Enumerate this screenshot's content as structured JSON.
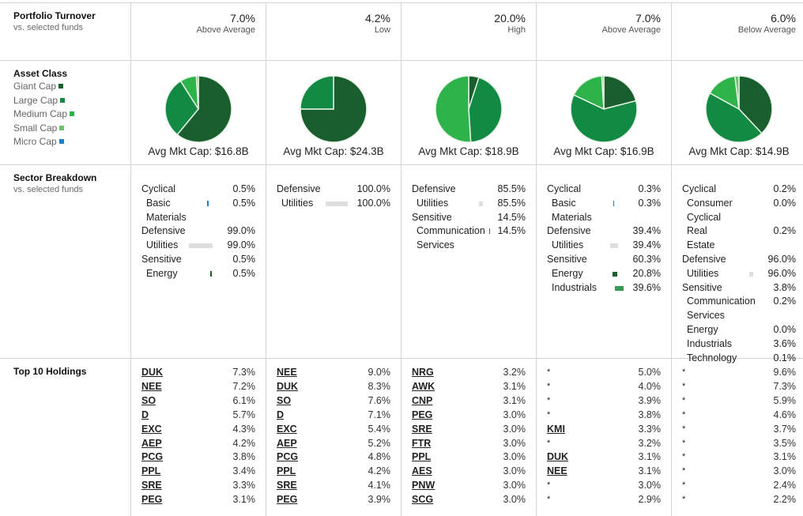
{
  "rows": {
    "turnover": {
      "title": "Portfolio Turnover",
      "subtitle": "vs. selected funds"
    },
    "asset_class": {
      "title": "Asset Class",
      "legend": [
        {
          "label": "Giant Cap",
          "color": "#1a5e2e"
        },
        {
          "label": "Large Cap",
          "color": "#128a43"
        },
        {
          "label": "Medium Cap",
          "color": "#2db34a"
        },
        {
          "label": "Small Cap",
          "color": "#6cc46a"
        },
        {
          "label": "Micro Cap",
          "color": "#1f7fc4"
        }
      ]
    },
    "sector": {
      "title": "Sector Breakdown",
      "subtitle": "vs. selected funds"
    },
    "holdings": {
      "title": "Top 10 Holdings"
    }
  },
  "funds": [
    {
      "turnover": {
        "value": "7.0%",
        "label": "Above Average"
      },
      "asset": {
        "mkt_cap": "Avg Mkt Cap: $16.8B",
        "slices": [
          61,
          30,
          8,
          1,
          0
        ]
      },
      "sectors": [
        {
          "name": "Cyclical",
          "level": 0,
          "value": "0.5%"
        },
        {
          "name": "Basic",
          "level": 1,
          "value": "0.5%",
          "bar": 2,
          "bar_color": "#1f7fc4"
        },
        {
          "name": "Materials",
          "level": 1,
          "value": ""
        },
        {
          "name": "Defensive",
          "level": 0,
          "value": "99.0%"
        },
        {
          "name": "Utilities",
          "level": 1,
          "value": "99.0%",
          "bar": 30,
          "bar_color": "#dedede"
        },
        {
          "name": "Sensitive",
          "level": 0,
          "value": "0.5%"
        },
        {
          "name": "Energy",
          "level": 1,
          "value": "0.5%",
          "bar": 2,
          "bar_color": "#1a5e2e"
        }
      ],
      "holdings": [
        {
          "ticker": "DUK",
          "value": "7.3%"
        },
        {
          "ticker": "NEE",
          "value": "7.2%"
        },
        {
          "ticker": "SO",
          "value": "6.1%"
        },
        {
          "ticker": "D",
          "value": "5.7%"
        },
        {
          "ticker": "EXC",
          "value": "4.3%"
        },
        {
          "ticker": "AEP",
          "value": "4.2%"
        },
        {
          "ticker": "PCG",
          "value": "3.8%"
        },
        {
          "ticker": "PPL",
          "value": "3.4%"
        },
        {
          "ticker": "SRE",
          "value": "3.3%"
        },
        {
          "ticker": "PEG",
          "value": "3.1%"
        }
      ]
    },
    {
      "turnover": {
        "value": "4.2%",
        "label": "Low"
      },
      "asset": {
        "mkt_cap": "Avg Mkt Cap: $24.3B",
        "slices": [
          75,
          25,
          0,
          0,
          0
        ]
      },
      "sectors": [
        {
          "name": "Defensive",
          "level": 0,
          "value": "100.0%"
        },
        {
          "name": "Utilities",
          "level": 1,
          "value": "100.0%",
          "bar": 28,
          "bar_color": "#dedede"
        }
      ],
      "holdings": [
        {
          "ticker": "NEE",
          "value": "9.0%"
        },
        {
          "ticker": "DUK",
          "value": "8.3%"
        },
        {
          "ticker": "SO",
          "value": "7.6%"
        },
        {
          "ticker": "D",
          "value": "7.1%"
        },
        {
          "ticker": "EXC",
          "value": "5.4%"
        },
        {
          "ticker": "AEP",
          "value": "5.2%"
        },
        {
          "ticker": "PCG",
          "value": "4.8%"
        },
        {
          "ticker": "PPL",
          "value": "4.2%"
        },
        {
          "ticker": "SRE",
          "value": "4.1%"
        },
        {
          "ticker": "PEG",
          "value": "3.9%"
        }
      ]
    },
    {
      "turnover": {
        "value": "20.0%",
        "label": "High"
      },
      "asset": {
        "mkt_cap": "Avg Mkt Cap: $18.9B",
        "slices": [
          5,
          44,
          51,
          0,
          0
        ]
      },
      "sectors": [
        {
          "name": "Defensive",
          "level": 0,
          "value": "85.5%"
        },
        {
          "name": "Utilities",
          "level": 1,
          "value": "85.5%",
          "bar": 5,
          "bar_color": "#dedede"
        },
        {
          "name": "Sensitive",
          "level": 0,
          "value": "14.5%"
        },
        {
          "name": "Communication",
          "level": 1,
          "value": "14.5%",
          "bar": 1,
          "bar_color": "#555555"
        },
        {
          "name": "Services",
          "level": 1,
          "value": ""
        }
      ],
      "holdings": [
        {
          "ticker": "NRG",
          "value": "3.2%"
        },
        {
          "ticker": "AWK",
          "value": "3.1%"
        },
        {
          "ticker": "CNP",
          "value": "3.1%"
        },
        {
          "ticker": "PEG",
          "value": "3.0%"
        },
        {
          "ticker": "SRE",
          "value": "3.0%"
        },
        {
          "ticker": "FTR",
          "value": "3.0%"
        },
        {
          "ticker": "PPL",
          "value": "3.0%"
        },
        {
          "ticker": "AES",
          "value": "3.0%"
        },
        {
          "ticker": "PNW",
          "value": "3.0%"
        },
        {
          "ticker": "SCG",
          "value": "3.0%"
        }
      ]
    },
    {
      "turnover": {
        "value": "7.0%",
        "label": "Above Average"
      },
      "asset": {
        "mkt_cap": "Avg Mkt Cap: $16.9B",
        "slices": [
          21,
          61,
          17,
          1,
          0
        ]
      },
      "sectors": [
        {
          "name": "Cyclical",
          "level": 0,
          "value": "0.3%"
        },
        {
          "name": "Basic",
          "level": 1,
          "value": "0.3%",
          "bar": 1,
          "bar_color": "#1f7fc4"
        },
        {
          "name": "Materials",
          "level": 1,
          "value": ""
        },
        {
          "name": "Defensive",
          "level": 0,
          "value": "39.4%"
        },
        {
          "name": "Utilities",
          "level": 1,
          "value": "39.4%",
          "bar": 10,
          "bar_color": "#dedede"
        },
        {
          "name": "Sensitive",
          "level": 0,
          "value": "60.3%"
        },
        {
          "name": "Energy",
          "level": 1,
          "value": "20.8%",
          "bar": 6,
          "bar_color": "#1a5e2e"
        },
        {
          "name": "Industrials",
          "level": 1,
          "value": "39.6%",
          "bar": 11,
          "bar_color": "#3a9a55"
        }
      ],
      "holdings": [
        {
          "ticker": "*",
          "value": "5.0%"
        },
        {
          "ticker": "*",
          "value": "4.0%"
        },
        {
          "ticker": "*",
          "value": "3.9%"
        },
        {
          "ticker": "*",
          "value": "3.8%"
        },
        {
          "ticker": "KMI",
          "value": "3.3%"
        },
        {
          "ticker": "*",
          "value": "3.2%"
        },
        {
          "ticker": "DUK",
          "value": "3.1%"
        },
        {
          "ticker": "NEE",
          "value": "3.1%"
        },
        {
          "ticker": "*",
          "value": "3.0%"
        },
        {
          "ticker": "*",
          "value": "2.9%"
        }
      ]
    },
    {
      "turnover": {
        "value": "6.0%",
        "label": "Below Average"
      },
      "asset": {
        "mkt_cap": "Avg Mkt Cap: $14.9B",
        "slices": [
          38,
          45,
          15,
          2,
          0
        ]
      },
      "sectors": [
        {
          "name": "Cyclical",
          "level": 0,
          "value": "0.2%"
        },
        {
          "name": "Consumer",
          "level": 1,
          "value": "0.0%"
        },
        {
          "name": "Cyclical",
          "level": 1,
          "value": ""
        },
        {
          "name": "Real Estate",
          "level": 1,
          "value": "0.2%"
        },
        {
          "name": "Defensive",
          "level": 0,
          "value": "96.0%"
        },
        {
          "name": "Utilities",
          "level": 1,
          "value": "96.0%",
          "bar": 5,
          "bar_color": "#dedede"
        },
        {
          "name": "Sensitive",
          "level": 0,
          "value": "3.8%"
        },
        {
          "name": "Communication",
          "level": 1,
          "value": "0.2%"
        },
        {
          "name": "Services",
          "level": 1,
          "value": ""
        },
        {
          "name": "Energy",
          "level": 1,
          "value": "0.0%"
        },
        {
          "name": "Industrials",
          "level": 1,
          "value": "3.6%"
        },
        {
          "name": "Technology",
          "level": 1,
          "value": "0.1%"
        }
      ],
      "holdings": [
        {
          "ticker": "*",
          "value": "9.6%"
        },
        {
          "ticker": "*",
          "value": "7.3%"
        },
        {
          "ticker": "*",
          "value": "5.9%"
        },
        {
          "ticker": "*",
          "value": "4.6%"
        },
        {
          "ticker": "*",
          "value": "3.7%"
        },
        {
          "ticker": "*",
          "value": "3.5%"
        },
        {
          "ticker": "*",
          "value": "3.1%"
        },
        {
          "ticker": "*",
          "value": "3.0%"
        },
        {
          "ticker": "*",
          "value": "2.4%"
        },
        {
          "ticker": "*",
          "value": "2.2%"
        }
      ]
    }
  ],
  "chart_data": [
    {
      "type": "pie",
      "title": "Asset Class - Fund 1",
      "categories": [
        "Giant Cap",
        "Large Cap",
        "Medium Cap",
        "Small Cap",
        "Micro Cap"
      ],
      "values": [
        61,
        30,
        8,
        1,
        0
      ]
    },
    {
      "type": "pie",
      "title": "Asset Class - Fund 2",
      "categories": [
        "Giant Cap",
        "Large Cap",
        "Medium Cap",
        "Small Cap",
        "Micro Cap"
      ],
      "values": [
        75,
        25,
        0,
        0,
        0
      ]
    },
    {
      "type": "pie",
      "title": "Asset Class - Fund 3",
      "categories": [
        "Giant Cap",
        "Large Cap",
        "Medium Cap",
        "Small Cap",
        "Micro Cap"
      ],
      "values": [
        5,
        44,
        51,
        0,
        0
      ]
    },
    {
      "type": "pie",
      "title": "Asset Class - Fund 4",
      "categories": [
        "Giant Cap",
        "Large Cap",
        "Medium Cap",
        "Small Cap",
        "Micro Cap"
      ],
      "values": [
        21,
        61,
        17,
        1,
        0
      ]
    },
    {
      "type": "pie",
      "title": "Asset Class - Fund 5",
      "categories": [
        "Giant Cap",
        "Large Cap",
        "Medium Cap",
        "Small Cap",
        "Micro Cap"
      ],
      "values": [
        38,
        45,
        15,
        2,
        0
      ]
    }
  ]
}
